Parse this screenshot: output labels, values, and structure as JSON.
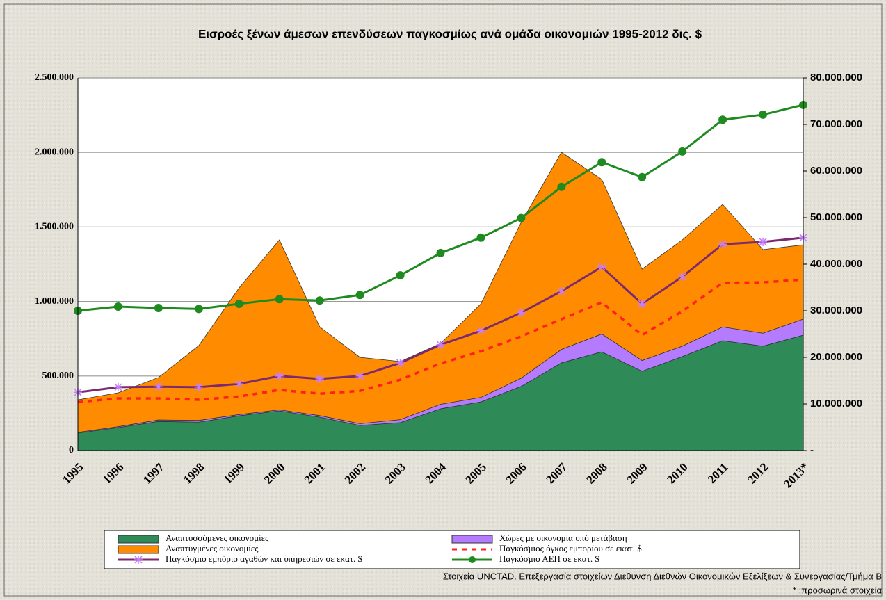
{
  "chart_data": {
    "type": "area",
    "title": "Εισροές ξένων άμεσων επενδύσεων παγκοσμίως ανά ομάδα οικονομιών 1995-2012 δις. $",
    "categories": [
      "1995",
      "1996",
      "1997",
      "1998",
      "1999",
      "2000",
      "2001",
      "2002",
      "2003",
      "2004",
      "2005",
      "2006",
      "2007",
      "2008",
      "2009",
      "2010",
      "2011",
      "2012",
      "2013*"
    ],
    "ylim": [
      0,
      2500000
    ],
    "yticks": [
      0,
      {
        "value": 500000,
        "label": "500.000"
      },
      {
        "value": 1000000,
        "label": "1.000.000"
      },
      {
        "value": 1500000,
        "label": "1.500.000"
      },
      {
        "value": 2000000,
        "label": "2.000.000"
      },
      {
        "value": 2500000,
        "label": "2.500.000"
      }
    ],
    "y2lim": [
      0,
      80000000
    ],
    "y2ticks": [
      {
        "value": 0,
        "label": "-"
      },
      {
        "value": 10000000,
        "label": "10.000.000"
      },
      {
        "value": 20000000,
        "label": "20.000.000"
      },
      {
        "value": 30000000,
        "label": "30.000.000"
      },
      {
        "value": 40000000,
        "label": "40.000.000"
      },
      {
        "value": 50000000,
        "label": "50.000.000"
      },
      {
        "value": 60000000,
        "label": "60.000.000"
      },
      {
        "value": 70000000,
        "label": "70.000.000"
      },
      {
        "value": 80000000,
        "label": "80.000.000"
      }
    ],
    "grid": true,
    "series": [
      {
        "name": "Αναπτυσσόμενες οικονομίες",
        "color": "#2e8b57",
        "kind": "area",
        "values": [
          117000,
          154000,
          195000,
          190000,
          233000,
          266000,
          224000,
          168000,
          187000,
          280000,
          326000,
          430000,
          588000,
          662000,
          532000,
          630000,
          737000,
          700000,
          774000
        ]
      },
      {
        "name": "Χώρες με οικονομία υπό μετάβαση",
        "color": "#b57bff",
        "kind": "area",
        "values": [
          5000,
          6000,
          10000,
          12000,
          8000,
          7000,
          10000,
          12000,
          20000,
          30000,
          30000,
          55000,
          90000,
          120000,
          72000,
          70000,
          92000,
          87000,
          108000
        ]
      },
      {
        "name": "Αναπτυγμένες οικονομίες",
        "color": "#ff8c00",
        "kind": "area",
        "values": [
          218000,
          227000,
          285000,
          502000,
          850000,
          1140000,
          596000,
          445000,
          390000,
          408000,
          628000,
          1045000,
          1323000,
          1037000,
          613000,
          713000,
          822000,
          561000,
          498000
        ]
      },
      {
        "name": "Παγκόσμιος όγκος εμπορίου σε εκατ. $",
        "color": "#ff2020",
        "kind": "line",
        "dash": true,
        "axis": "y2",
        "values": [
          10400000,
          11200000,
          11200000,
          10900000,
          11600000,
          13000000,
          12200000,
          12800000,
          15200000,
          18700000,
          21300000,
          24500000,
          28200000,
          31800000,
          24800000,
          29900000,
          36000000,
          36100000,
          36700000
        ]
      },
      {
        "name": "Παγκόσμιο εμπόριο αγαθών και υπηρεσιών σε εκατ. $",
        "color": "#7b2a6e",
        "kind": "line",
        "marker": "star",
        "axis": "y2",
        "values": [
          12500000,
          13600000,
          13700000,
          13600000,
          14300000,
          16000000,
          15400000,
          16000000,
          18800000,
          22700000,
          25700000,
          29600000,
          34200000,
          39400000,
          31500000,
          37300000,
          44300000,
          44800000,
          45700000
        ]
      },
      {
        "name": "Παγκόσμιο ΑΕΠ σε εκατ. $",
        "color": "#1f8a1f",
        "kind": "line",
        "marker": "circle",
        "axis": "y2",
        "values": [
          30000000,
          30900000,
          30600000,
          30400000,
          31500000,
          32500000,
          32200000,
          33400000,
          37600000,
          42400000,
          45700000,
          49900000,
          56600000,
          61900000,
          58700000,
          64200000,
          71000000,
          72100000,
          74200000
        ]
      }
    ],
    "source": "Στοιχεία UNCTAD.  Επεξεργασία στοιχείων Διεθυνση Διεθνών Οικονομικών Εξελίξεων & Συνεργασίας/Τμήμα Β",
    "note": "* :προσωρινά στοιχεία"
  }
}
